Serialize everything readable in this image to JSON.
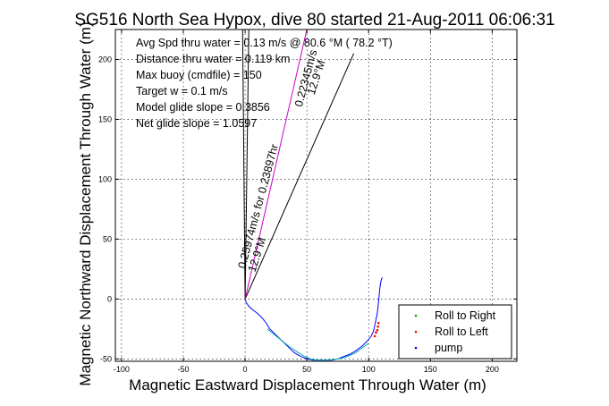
{
  "chart_data": {
    "type": "line",
    "title": "SG516 North Sea Hypox, dive 80 started 21-Aug-2011 06:06:31",
    "xlabel": "Magnetic Eastward Displacement Through Water (m)",
    "ylabel": "Magnetic Northward Displacement Through Water (m)",
    "xlim": [
      -105,
      220
    ],
    "ylim": [
      -52,
      225
    ],
    "xticks": [
      -100,
      -50,
      0,
      50,
      100,
      150,
      200
    ],
    "yticks": [
      -50,
      0,
      50,
      100,
      150,
      200
    ],
    "grid": true,
    "annotations": [
      "Avg Spd thru water =  0.13 m/s @  80.6   °M ( 78.2 °T)",
      "Distance thru water =  0.119 km",
      "Max buoy (cmdfile) = 150",
      "Target w = 0.1 m/s",
      "Model glide slope = 0.3856",
      "Net glide slope = 1.0597"
    ],
    "diagonal_labels": [
      {
        "text": "0.25974m/s for 0.23897hr",
        "x": 0,
        "y": 25,
        "angle_deg": 75
      },
      {
        "text": "12.9°M",
        "x": 8,
        "y": 22,
        "angle_deg": 72
      },
      {
        "text": "0.22345m/s",
        "x": 46,
        "y": 160,
        "angle_deg": 75
      },
      {
        "text": "12.9°M",
        "x": 56,
        "y": 170,
        "angle_deg": 72
      }
    ],
    "legend": {
      "placement": "bottom-right",
      "entries": [
        {
          "name": "Roll to Right",
          "color": "#00aa00"
        },
        {
          "name": "Roll to Left",
          "color": "#ff0000"
        },
        {
          "name": "pump",
          "color": "#0000ff"
        }
      ]
    },
    "series": [
      {
        "style": "line",
        "color": "#000000",
        "x": [
          -2,
          0,
          3
        ],
        "y": [
          225,
          0,
          225
        ]
      },
      {
        "style": "line",
        "color": "#000000",
        "x": [
          0,
          88
        ],
        "y": [
          0,
          205
        ]
      },
      {
        "style": "line",
        "color": "#cc00cc",
        "x": [
          0,
          50
        ],
        "y": [
          0,
          225
        ]
      },
      {
        "style": "line",
        "color": "#0000ff",
        "x": [
          0,
          1,
          3,
          6,
          10,
          14,
          17,
          20,
          24,
          28,
          32,
          36,
          40,
          45,
          50,
          55,
          60,
          65,
          70,
          75,
          80,
          85,
          90,
          95,
          99,
          102,
          104,
          105,
          106,
          107,
          107.5,
          108,
          108.5,
          109,
          109.5,
          110,
          111
        ],
        "y": [
          0,
          -3,
          -6,
          -9,
          -12,
          -16,
          -20,
          -25,
          -29,
          -33,
          -37,
          -41,
          -45,
          -48,
          -50,
          -51,
          -51,
          -51,
          -51,
          -50,
          -48,
          -46,
          -43,
          -39,
          -35,
          -31,
          -27,
          -22,
          -17,
          -12,
          -7,
          -2,
          3,
          8,
          12,
          15,
          18
        ]
      },
      {
        "style": "line",
        "color": "#00aaaa",
        "x": [
          18,
          24,
          30,
          36,
          42,
          48,
          54,
          60,
          66,
          72,
          78,
          84,
          90,
          96,
          100
        ],
        "y": [
          -25,
          -30,
          -35,
          -40,
          -44,
          -48,
          -50.5,
          -51,
          -51,
          -50.5,
          -49.5,
          -47.5,
          -44.5,
          -40,
          -37
        ]
      },
      {
        "style": "points",
        "color": "#ff0000",
        "x": [
          105,
          106,
          107,
          107.5,
          108
        ],
        "y": [
          -31,
          -28,
          -26,
          -23,
          -20
        ]
      }
    ]
  }
}
